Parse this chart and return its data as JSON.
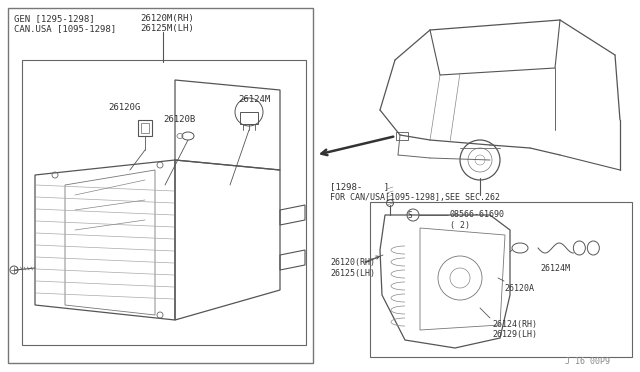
{
  "bg_color": "#ffffff",
  "line_color": "#555555",
  "text_color": "#333333",
  "gen_label": "GEN [1295-1298]",
  "can_label": "CAN.USA [1095-1298]",
  "part_26120M": "26120M(RH)",
  "part_26125M": "26125M(LH)",
  "part_26120G": "26120G",
  "part_26120B": "26120B",
  "part_26124M_top": "26124M",
  "bracket_label": "[1298-    ]",
  "for_can_label": "FOR CAN/USA[1095-1298],SEE SEC.262",
  "part_08566": "08566-61690",
  "part_08566_sub": "( 2)",
  "part_S": "S",
  "part_26120RH": "26120(RH)",
  "part_26125LH": "26125(LH)",
  "part_26124M_bot": "26124M",
  "part_26120A": "26120A",
  "part_26124RH": "26124(RH)",
  "part_26129LH": "26129(LH)",
  "watermark": "J 16 00P9"
}
